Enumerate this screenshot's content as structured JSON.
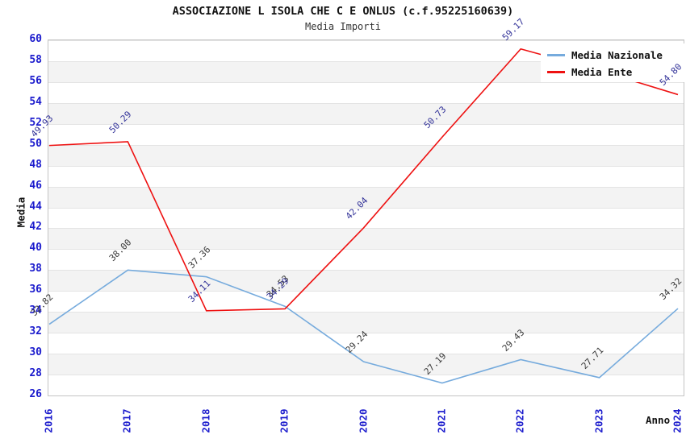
{
  "chart_data": {
    "type": "line",
    "title": "ASSOCIAZIONE L ISOLA CHE C E ONLUS (c.f.95225160639)",
    "subtitle": "Media Importi",
    "xlabel": "Anno",
    "ylabel": "Media",
    "x": [
      2016,
      2017,
      2018,
      2019,
      2020,
      2021,
      2022,
      2023,
      2024
    ],
    "ylim": [
      26,
      60
    ],
    "ytick_step": 2,
    "grid": "horizontal-bands-alternating",
    "legend_position": "top-right-inside",
    "series": [
      {
        "name": "Media Nazionale",
        "color": "#76abdd",
        "label_color": "#3a3a3a",
        "values": [
          32.82,
          38.0,
          37.36,
          34.53,
          29.24,
          27.19,
          29.43,
          27.71,
          34.32
        ],
        "hidden_label_indexes": []
      },
      {
        "name": "Media Ente",
        "color": "#ee1111",
        "label_color": "#333399",
        "values": [
          49.93,
          50.29,
          34.11,
          34.29,
          42.04,
          50.73,
          59.17,
          57.1,
          54.8
        ],
        "hidden_label_indexes": [
          7
        ]
      }
    ],
    "colors": {
      "tick_label": "#1c1ccd",
      "band_fill": "#f3f3f3",
      "grid_line": "#e4e4e4",
      "plot_border": "#c4c4c4"
    }
  }
}
